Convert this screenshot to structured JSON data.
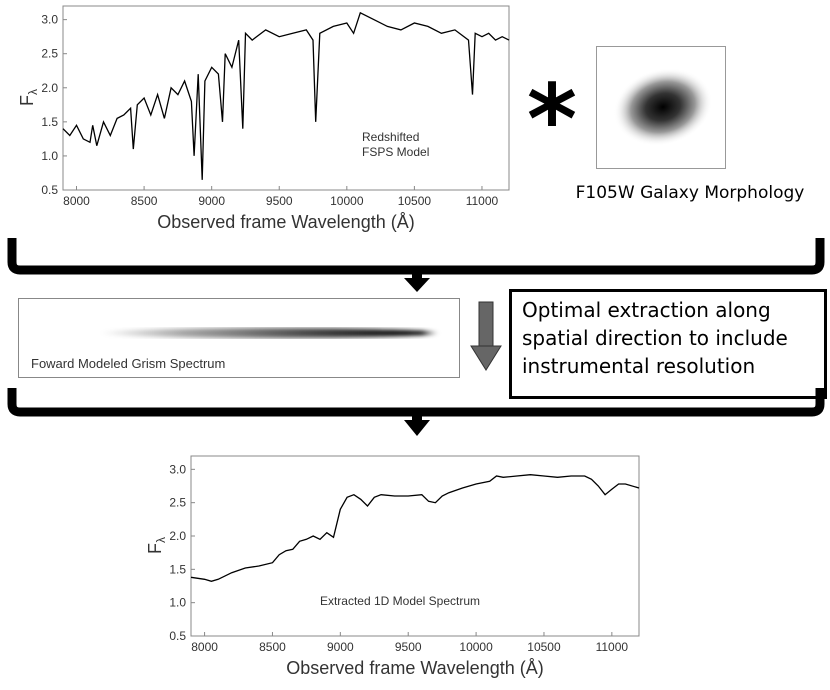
{
  "chart_data": [
    {
      "type": "line",
      "annotation": "Redshifted\nFSPS Model",
      "xlabel": "Observed frame Wavelength (Å)",
      "ylabel": "F",
      "ylabel_subscript": "λ",
      "xlim": [
        7900,
        11200
      ],
      "ylim": [
        0.5,
        3.2
      ],
      "xticks": [
        "8000",
        "8500",
        "9000",
        "9500",
        "10000",
        "10500",
        "11000"
      ],
      "yticks": [
        "0.5",
        "1.0",
        "1.5",
        "2.0",
        "2.5",
        "3.0"
      ],
      "grid": false,
      "series": [
        {
          "x": [
            7900,
            7950,
            8000,
            8050,
            8100,
            8120,
            8150,
            8200,
            8250,
            8300,
            8350,
            8400,
            8420,
            8450,
            8500,
            8550,
            8600,
            8650,
            8700,
            8750,
            8800,
            8850,
            8870,
            8900,
            8930,
            8950,
            9000,
            9050,
            9080,
            9100,
            9150,
            9200,
            9230,
            9250,
            9300,
            9400,
            9500,
            9600,
            9700,
            9750,
            9770,
            9800,
            9900,
            10000,
            10050,
            10100,
            10200,
            10300,
            10400,
            10500,
            10600,
            10700,
            10800,
            10900,
            10930,
            10950,
            11000,
            11050,
            11100,
            11150,
            11200
          ],
          "values": [
            1.4,
            1.3,
            1.45,
            1.25,
            1.2,
            1.45,
            1.15,
            1.5,
            1.3,
            1.55,
            1.6,
            1.7,
            1.1,
            1.75,
            1.85,
            1.6,
            1.9,
            1.55,
            2.0,
            1.9,
            2.1,
            1.8,
            1.0,
            2.2,
            0.65,
            2.1,
            2.3,
            2.2,
            1.5,
            2.5,
            2.3,
            2.7,
            1.4,
            2.8,
            2.7,
            2.85,
            2.75,
            2.8,
            2.85,
            2.7,
            1.5,
            2.8,
            2.9,
            2.95,
            2.8,
            3.1,
            3.0,
            2.9,
            2.85,
            2.95,
            2.9,
            2.8,
            2.85,
            2.7,
            1.9,
            2.8,
            2.75,
            2.8,
            2.7,
            2.75,
            2.7
          ]
        }
      ]
    },
    {
      "type": "line",
      "annotation": "Extracted 1D Model Spectrum",
      "xlabel": "Observed frame Wavelength (Å)",
      "ylabel": "F",
      "ylabel_subscript": "λ",
      "xlim": [
        7900,
        11200
      ],
      "ylim": [
        0.5,
        3.2
      ],
      "xticks": [
        "8000",
        "8500",
        "9000",
        "9500",
        "10000",
        "10500",
        "11000"
      ],
      "yticks": [
        "0.5",
        "1.0",
        "1.5",
        "2.0",
        "2.5",
        "3.0"
      ],
      "grid": false,
      "series": [
        {
          "x": [
            7900,
            8000,
            8050,
            8100,
            8200,
            8300,
            8400,
            8500,
            8550,
            8600,
            8650,
            8700,
            8750,
            8800,
            8850,
            8900,
            8950,
            9000,
            9050,
            9100,
            9150,
            9200,
            9250,
            9300,
            9400,
            9500,
            9600,
            9650,
            9700,
            9750,
            9800,
            9900,
            10000,
            10100,
            10150,
            10200,
            10300,
            10400,
            10500,
            10600,
            10700,
            10800,
            10850,
            10900,
            10950,
            11000,
            11050,
            11100,
            11200
          ],
          "values": [
            1.38,
            1.35,
            1.32,
            1.35,
            1.45,
            1.52,
            1.55,
            1.6,
            1.72,
            1.78,
            1.8,
            1.92,
            1.95,
            2.0,
            1.95,
            2.05,
            1.98,
            2.4,
            2.58,
            2.62,
            2.55,
            2.45,
            2.58,
            2.62,
            2.6,
            2.6,
            2.62,
            2.52,
            2.5,
            2.6,
            2.65,
            2.72,
            2.78,
            2.82,
            2.9,
            2.88,
            2.9,
            2.92,
            2.9,
            2.88,
            2.9,
            2.9,
            2.85,
            2.75,
            2.62,
            2.7,
            2.78,
            2.78,
            2.72
          ]
        }
      ]
    }
  ],
  "operator": "*",
  "morphology_caption": "F105W Galaxy Morphology",
  "grism_caption": "Foward Modeled Grism Spectrum",
  "extraction_box": {
    "lines": [
      "Optimal extraction along",
      "spatial direction to include",
      "instrumental resolution"
    ]
  },
  "colors": {
    "line": "#000000",
    "arrow_gray": "#666666",
    "frame": "#888888"
  }
}
